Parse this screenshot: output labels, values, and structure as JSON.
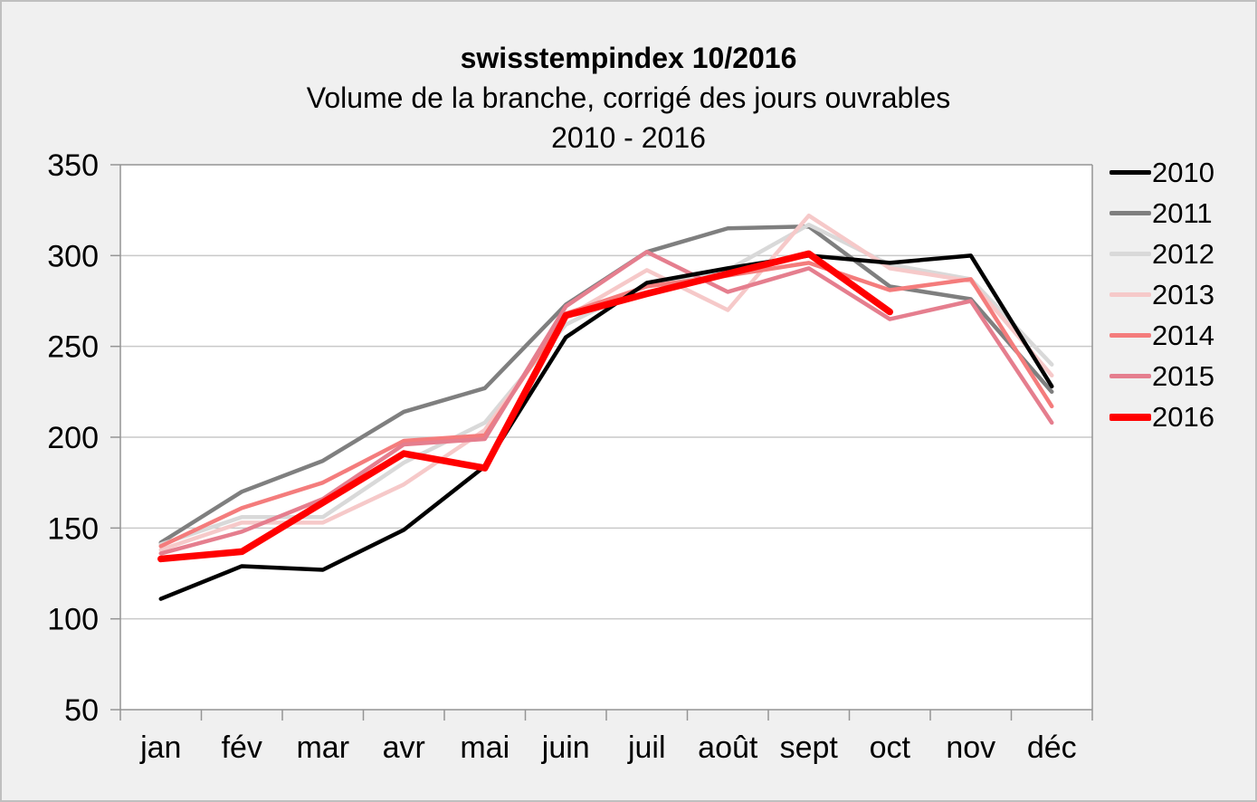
{
  "title": {
    "line1": "swisstempindex 10/2016",
    "line2": "Volume de la branche, corrigé des jours ouvrables",
    "line3": "2010 - 2016"
  },
  "chart_data": {
    "type": "line",
    "title": "swisstempindex 10/2016",
    "subtitle": "Volume de la branche, corrigé des jours ouvrables",
    "period": "2010 - 2016",
    "categories": [
      "jan",
      "fév",
      "mar",
      "avr",
      "mai",
      "juin",
      "juil",
      "août",
      "sept",
      "oct",
      "nov",
      "déc"
    ],
    "y_axis": {
      "min": 50,
      "max": 350,
      "step": 50,
      "tick_labels": [
        "50",
        "100",
        "150",
        "200",
        "250",
        "300",
        "350"
      ]
    },
    "grid": "horizontal",
    "legend_position": "right",
    "series": [
      {
        "name": "2010",
        "color": "#000000",
        "emphasized": false,
        "values": [
          111,
          129,
          127,
          149,
          184,
          255,
          285,
          293,
          300,
          296,
          300,
          228
        ]
      },
      {
        "name": "2011",
        "color": "#7F7F7F",
        "emphasized": false,
        "values": [
          142,
          170,
          187,
          214,
          227,
          273,
          302,
          315,
          316,
          283,
          276,
          225
        ]
      },
      {
        "name": "2012",
        "color": "#D9D9D9",
        "emphasized": false,
        "values": [
          141,
          156,
          156,
          186,
          208,
          262,
          284,
          292,
          317,
          295,
          287,
          240
        ]
      },
      {
        "name": "2013",
        "color": "#F6C9C9",
        "emphasized": false,
        "values": [
          138,
          153,
          153,
          174,
          204,
          266,
          292,
          270,
          322,
          293,
          286,
          234
        ]
      },
      {
        "name": "2014",
        "color": "#F47C7C",
        "emphasized": false,
        "values": [
          140,
          161,
          175,
          198,
          201,
          268,
          283,
          289,
          296,
          281,
          287,
          217
        ]
      },
      {
        "name": "2015",
        "color": "#E57E8E",
        "emphasized": false,
        "values": [
          136,
          148,
          166,
          196,
          199,
          272,
          302,
          280,
          293,
          265,
          275,
          208
        ]
      },
      {
        "name": "2016",
        "color": "#FF0000",
        "emphasized": true,
        "values": [
          133,
          137,
          164,
          191,
          183,
          267,
          279,
          290,
          301,
          269
        ]
      }
    ]
  },
  "legend": {
    "entries": [
      "2010",
      "2011",
      "2012",
      "2013",
      "2014",
      "2015",
      "2016"
    ]
  },
  "style_colors": {
    "background": "#F0F0F0",
    "outer_border": "#BFBFBF",
    "plot_background": "#FFFFFF",
    "axis": "#949494",
    "gridline": "#C9C9C9",
    "text": "#000000"
  }
}
